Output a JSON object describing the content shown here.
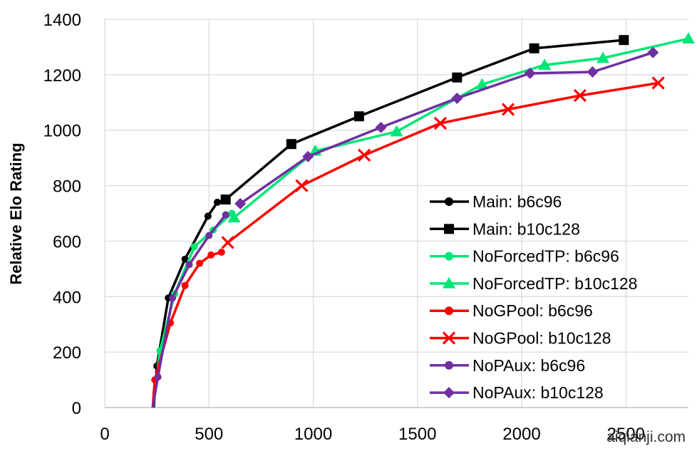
{
  "chart_data": {
    "type": "line",
    "title": "",
    "xlabel": "",
    "ylabel": "Relative Elo Rating",
    "xlim": [
      0,
      2800
    ],
    "ylim": [
      0,
      1400
    ],
    "xticks": [
      0,
      500,
      1000,
      1500,
      2000,
      2500
    ],
    "yticks": [
      0,
      200,
      400,
      600,
      800,
      1000,
      1200,
      1400
    ],
    "grid": true,
    "legend_position": "bottom-right",
    "series": [
      {
        "name": "Main: b6c96",
        "color": "#000000",
        "marker": "circle",
        "x": [
          235,
          250,
          305,
          385,
          495,
          540,
          580
        ],
        "y": [
          0,
          150,
          395,
          535,
          690,
          740,
          750
        ]
      },
      {
        "name": "Main: b10c128",
        "color": "#000000",
        "marker": "square",
        "x": [
          580,
          895,
          1220,
          1690,
          2060,
          2490
        ],
        "y": [
          750,
          950,
          1050,
          1190,
          1295,
          1325
        ]
      },
      {
        "name": "NoForcedTP: b6c96",
        "color": "#00e676",
        "marker": "circle",
        "x": [
          230,
          265,
          335,
          430,
          520,
          610
        ],
        "y": [
          0,
          205,
          410,
          580,
          640,
          700
        ]
      },
      {
        "name": "NoForcedTP: b10c128",
        "color": "#00e676",
        "marker": "triangle",
        "x": [
          620,
          1010,
          1400,
          1810,
          2110,
          2390,
          2800
        ],
        "y": [
          685,
          925,
          995,
          1165,
          1235,
          1260,
          1330
        ]
      },
      {
        "name": "NoGPool: b6c96",
        "color": "#ff0000",
        "marker": "circle",
        "x": [
          230,
          240,
          315,
          385,
          455,
          510,
          560
        ],
        "y": [
          0,
          100,
          305,
          440,
          520,
          550,
          560
        ]
      },
      {
        "name": "NoGPool: b10c128",
        "color": "#ff0000",
        "marker": "x",
        "x": [
          590,
          945,
          1245,
          1610,
          1935,
          2280,
          2655
        ],
        "y": [
          595,
          800,
          910,
          1025,
          1075,
          1125,
          1170
        ]
      },
      {
        "name": "NoPAux: b6c96",
        "color": "#7030a0",
        "marker": "circle",
        "x": [
          230,
          255,
          325,
          405,
          500,
          580
        ],
        "y": [
          0,
          110,
          395,
          515,
          620,
          695
        ]
      },
      {
        "name": "NoPAux: b10c128",
        "color": "#7030a0",
        "marker": "diamond",
        "x": [
          650,
          975,
          1325,
          1690,
          2040,
          2340,
          2630
        ],
        "y": [
          735,
          905,
          1010,
          1115,
          1205,
          1210,
          1280
        ]
      }
    ]
  },
  "watermark": "aiqianji.com"
}
